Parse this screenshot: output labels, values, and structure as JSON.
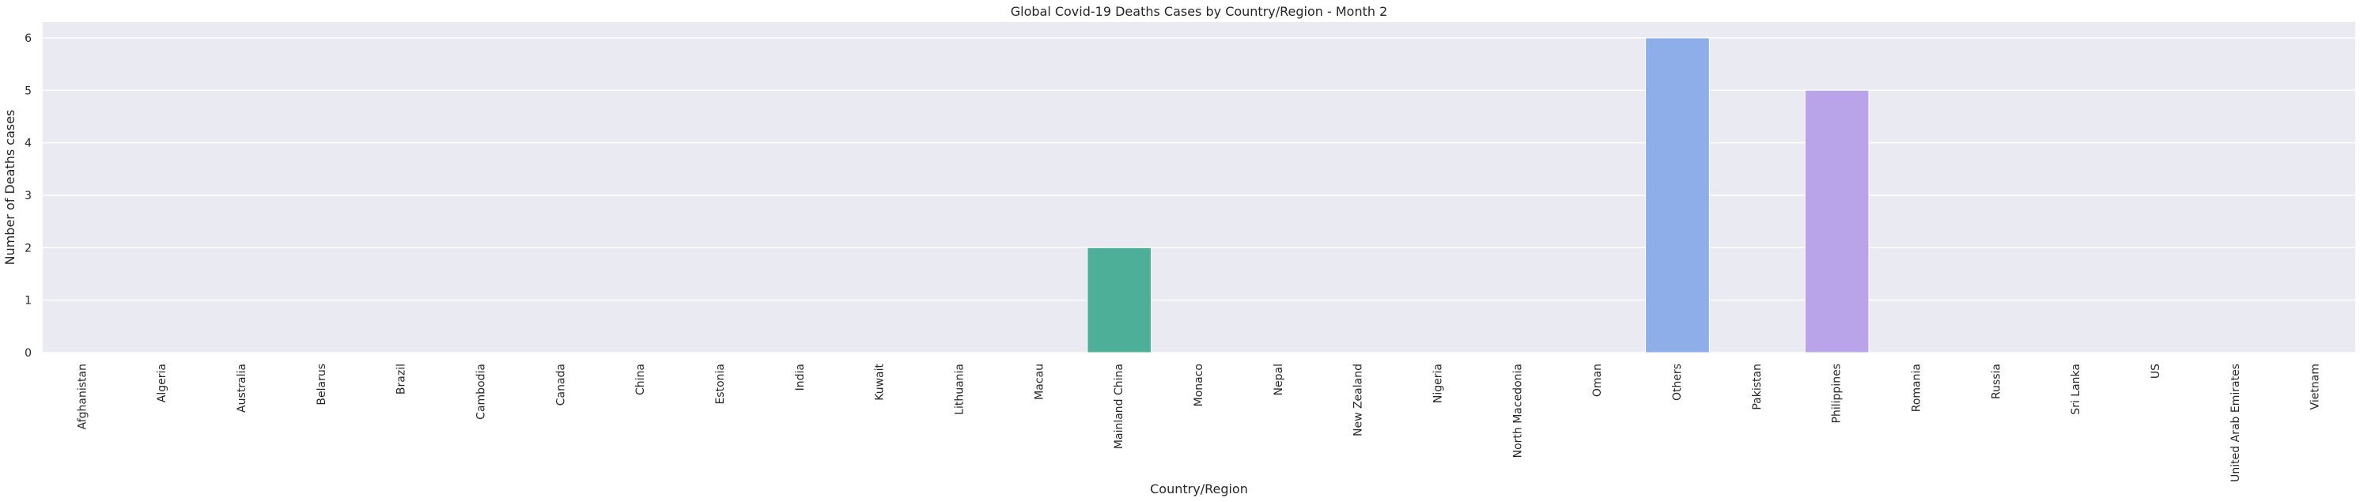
{
  "chart_data": {
    "type": "bar",
    "title": "Global Covid-19 Deaths Cases by Country/Region - Month 2",
    "xlabel": "Country/Region",
    "ylabel": "Number of Deaths cases",
    "ylim": [
      0,
      6.3
    ],
    "yticks": [
      0,
      1,
      2,
      3,
      4,
      5,
      6
    ],
    "grid": true,
    "categories": [
      "Afghanistan",
      "Algeria",
      "Australia",
      "Belarus",
      "Brazil",
      "Cambodia",
      "Canada",
      "China",
      "Estonia",
      "India",
      "Kuwait",
      "Lithuania",
      "Macau",
      "Mainland China",
      "Monaco",
      "Nepal",
      "New Zealand",
      "Nigeria",
      "North Macedonia",
      "Oman",
      "Others",
      "Pakistan",
      "Philippines",
      "Romania",
      "Russia",
      "Sri Lanka",
      "US",
      "United Arab Emirates",
      "Vietnam"
    ],
    "values": [
      0,
      0,
      0,
      0,
      0,
      0,
      0,
      0,
      0,
      0,
      0,
      0,
      0,
      2,
      0,
      0,
      0,
      0,
      0,
      0,
      6,
      0,
      5,
      0,
      0,
      0,
      0,
      0,
      0
    ],
    "bar_colors": {
      "Mainland China": "#4daf98",
      "Others": "#8eaeea",
      "Philippines": "#b9a4ea"
    },
    "plot_background": "#eaeaf2",
    "grid_color": "#ffffff"
  }
}
